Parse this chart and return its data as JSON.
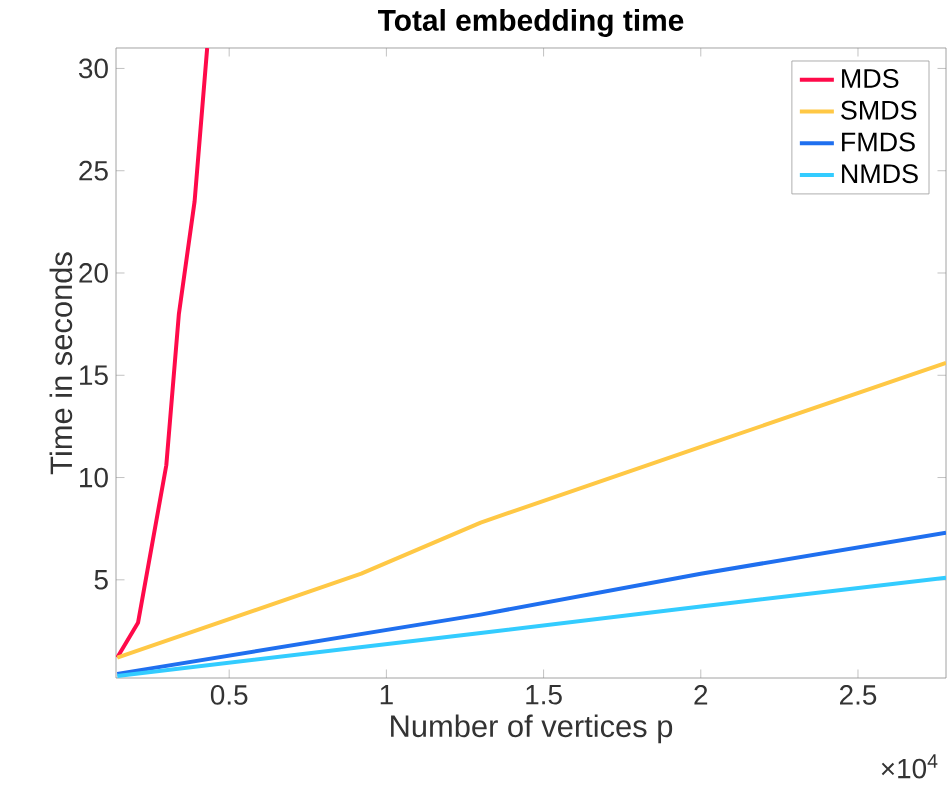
{
  "chart_data": {
    "type": "line",
    "title": "Total embedding time",
    "xlabel": "Number of vertices p",
    "ylabel": "Time in seconds",
    "annotations": [
      "×10$^{4}$"
    ],
    "xlim": [
      0.14,
      2.78
    ],
    "ylim": [
      0.2,
      31
    ],
    "xticks": [
      0.5,
      1,
      1.5,
      2,
      2.5
    ],
    "yticks": [
      5,
      10,
      15,
      20,
      25,
      30
    ],
    "legend": "top right",
    "grid": false,
    "series": [
      {
        "name": "MDS",
        "color": "#ff0a4a",
        "x": [
          0.144,
          0.21,
          0.3,
          0.34,
          0.39,
          0.43
        ],
        "values": [
          1.2,
          2.9,
          10.6,
          18,
          23.5,
          31
        ]
      },
      {
        "name": "SMDS",
        "color": "#ffc845",
        "x": [
          0.144,
          0.92,
          1.3,
          2.0,
          2.78
        ],
        "values": [
          1.2,
          5.3,
          7.8,
          11.5,
          15.6
        ]
      },
      {
        "name": "FMDS",
        "color": "#1f6fef",
        "x": [
          0.144,
          1.3,
          2.0,
          2.78
        ],
        "values": [
          0.4,
          3.3,
          5.3,
          7.3
        ]
      },
      {
        "name": "NMDS",
        "color": "#33ccff",
        "x": [
          0.144,
          1.3,
          2.0,
          2.78
        ],
        "values": [
          0.3,
          2.4,
          3.7,
          5.1
        ]
      }
    ]
  }
}
